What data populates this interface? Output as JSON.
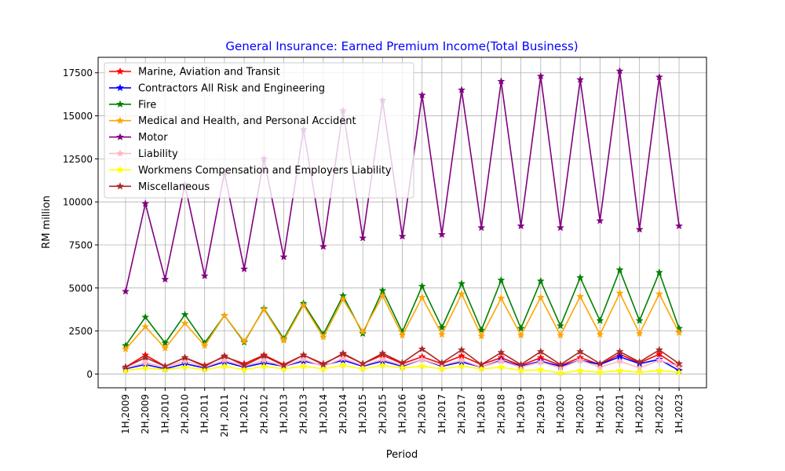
{
  "chart_data": {
    "type": "line",
    "title": "General Insurance: Earned Premium Income(Total Business)",
    "xlabel": "Period",
    "ylabel": "RM million",
    "ylim": [
      -800,
      18400
    ],
    "yticks": [
      0,
      2500,
      5000,
      7500,
      10000,
      12500,
      15000,
      17500
    ],
    "grid": true,
    "legend": "top-left",
    "categories": [
      "1H,2009",
      "2H,2009",
      "1H,2010",
      "2H,2010",
      "1H,2011",
      "2H ,2011",
      "1H,2012",
      "2H,2012",
      "1H,2013",
      "2H,2013",
      "1H,2014",
      "2H,2014",
      "1H,2015",
      "2H,2015",
      "1H,2016",
      "2H,2016",
      "1H,2017",
      "2H,2017",
      "1H,2018",
      "2H,2018",
      "1H,2019",
      "2H,2019",
      "1H,2020",
      "2H,2020",
      "1H,2021",
      "2H,2021",
      "1H,2022",
      "2H,2022",
      "1H,2023"
    ],
    "series": [
      {
        "name": "Marine, Aviation and Transit",
        "color": "#ff0000",
        "values": [
          400,
          1100,
          450,
          950,
          500,
          1000,
          600,
          1100,
          550,
          1100,
          600,
          1150,
          600,
          1100,
          600,
          1000,
          600,
          1050,
          550,
          950,
          500,
          950,
          500,
          950,
          550,
          1150,
          650,
          1150,
          400
        ]
      },
      {
        "name": "Contractors All Risk and Engineering",
        "color": "#0000ff",
        "values": [
          300,
          550,
          300,
          600,
          350,
          700,
          400,
          650,
          450,
          750,
          500,
          800,
          450,
          750,
          450,
          850,
          450,
          700,
          400,
          800,
          450,
          750,
          450,
          800,
          550,
          1000,
          600,
          850,
          200
        ]
      },
      {
        "name": "Fire",
        "color": "#008000",
        "values": [
          1650,
          3300,
          1800,
          3450,
          1800,
          3400,
          1850,
          3800,
          2050,
          4100,
          2300,
          4550,
          2350,
          4850,
          2450,
          5100,
          2700,
          5250,
          2550,
          5450,
          2650,
          5400,
          2800,
          5600,
          3100,
          6050,
          3100,
          5900,
          2650
        ]
      },
      {
        "name": "Medical and Health, and Personal Accident",
        "color": "#ffa500",
        "values": [
          1450,
          2750,
          1500,
          2950,
          1650,
          3400,
          1900,
          3750,
          1950,
          4000,
          2150,
          4350,
          2450,
          4550,
          2250,
          4450,
          2300,
          4650,
          2200,
          4400,
          2250,
          4450,
          2250,
          4500,
          2300,
          4700,
          2350,
          4650,
          2400
        ]
      },
      {
        "name": "Motor",
        "color": "#800080",
        "values": [
          4800,
          9900,
          5500,
          11000,
          5700,
          11700,
          6100,
          12500,
          6800,
          14200,
          7400,
          15300,
          7900,
          15900,
          8000,
          16200,
          8100,
          16500,
          8500,
          17000,
          8600,
          17300,
          8500,
          17100,
          8900,
          17600,
          8400,
          17250,
          8600
        ]
      },
      {
        "name": "Liability",
        "color": "#ffb6c1",
        "values": [
          350,
          650,
          400,
          750,
          400,
          800,
          450,
          800,
          450,
          850,
          450,
          900,
          500,
          850,
          500,
          850,
          500,
          800,
          400,
          750,
          400,
          700,
          350,
          800,
          400,
          750,
          350,
          800,
          450
        ]
      },
      {
        "name": "Workmens Compensation and Employers Liability",
        "color": "#ffff00",
        "values": [
          200,
          350,
          250,
          400,
          250,
          450,
          250,
          450,
          300,
          450,
          300,
          500,
          300,
          500,
          350,
          450,
          300,
          450,
          300,
          400,
          200,
          250,
          50,
          200,
          100,
          200,
          100,
          200,
          100
        ]
      },
      {
        "name": "Miscellaneous",
        "color": "#a52a2a",
        "values": [
          400,
          950,
          450,
          950,
          450,
          1050,
          500,
          1050,
          500,
          1100,
          550,
          1200,
          600,
          1200,
          650,
          1450,
          650,
          1400,
          550,
          1250,
          550,
          1300,
          550,
          1300,
          600,
          1300,
          700,
          1400,
          600
        ]
      }
    ]
  }
}
